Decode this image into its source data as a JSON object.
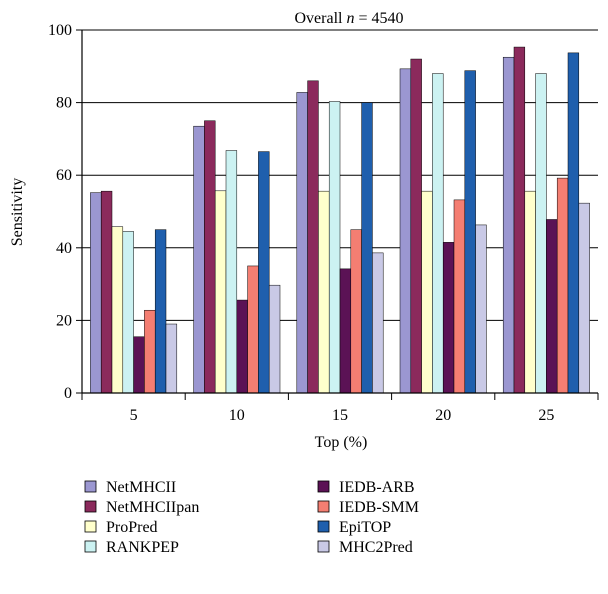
{
  "chart_data": {
    "type": "bar",
    "title_prefix": "Overall ",
    "title_var": "n",
    "title_suffix": " = 4540",
    "xlabel": "Top (%)",
    "ylabel": "Sensitivity",
    "categories": [
      "5",
      "10",
      "15",
      "20",
      "25"
    ],
    "ylim": [
      0,
      100
    ],
    "yticks": [
      "0",
      "20",
      "40",
      "60",
      "80",
      "100"
    ],
    "grid": true,
    "legend_position": "bottom",
    "series": [
      {
        "name": "NetMHCII",
        "color": "#9B97D1",
        "values": [
          55.2,
          73.5,
          82.8,
          89.3,
          92.5
        ]
      },
      {
        "name": "NetMHCIIpan",
        "color": "#8B2A5C",
        "values": [
          55.6,
          75.0,
          86.0,
          92.0,
          95.3
        ]
      },
      {
        "name": "ProPred",
        "color": "#FFFFCC",
        "values": [
          45.8,
          55.7,
          55.6,
          55.6,
          55.6
        ]
      },
      {
        "name": "RANKPEP",
        "color": "#CCF2F2",
        "values": [
          44.5,
          66.8,
          80.3,
          88.0,
          88.0
        ]
      },
      {
        "name": "IEDB-ARB",
        "color": "#5B1255",
        "values": [
          15.5,
          25.6,
          34.2,
          41.5,
          47.8
        ]
      },
      {
        "name": "IEDB-SMM",
        "color": "#F47E72",
        "values": [
          22.8,
          35.0,
          45.0,
          53.2,
          59.2
        ]
      },
      {
        "name": "EpiTOP",
        "color": "#1F5FAD",
        "values": [
          45.0,
          66.5,
          80.0,
          88.8,
          93.7
        ]
      },
      {
        "name": "MHC2Pred",
        "color": "#C9C9E6",
        "values": [
          19.0,
          29.7,
          38.6,
          46.3,
          52.3
        ]
      }
    ]
  }
}
